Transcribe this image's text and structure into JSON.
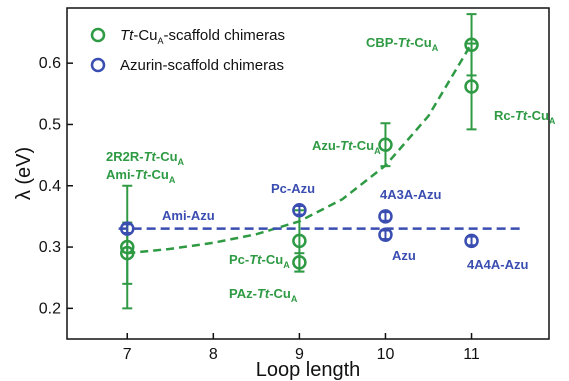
{
  "chart_data": {
    "type": "scatter",
    "xlabel": "Loop length",
    "ylabel": "λ (eV)",
    "xlim": [
      6.3,
      11.9
    ],
    "ylim": [
      0.15,
      0.69
    ],
    "xticks": [
      7,
      8,
      9,
      10,
      11
    ],
    "yticks": [
      0.2,
      0.3,
      0.4,
      0.5,
      0.6
    ],
    "ytick_labels": [
      "0.2",
      "0.3",
      "0.4",
      "0.5",
      "0.6"
    ],
    "legend_position": "top-left",
    "colors": {
      "green": "#2e9a43",
      "blue": "#3a4db0"
    },
    "series": [
      {
        "name": "Tt-CuA-scaffold chimeras",
        "legend_parts": [
          [
            "Tt",
            "italic"
          ],
          [
            "-Cu",
            "normal"
          ],
          [
            "A",
            "sub"
          ],
          [
            "-scaffold chimeras",
            "normal"
          ]
        ],
        "color": "#2e9a43",
        "points": [
          {
            "x": 7,
            "y": 0.3,
            "err": 0.1
          },
          {
            "x": 7,
            "y": 0.29,
            "err": 0.05
          },
          {
            "x": 9,
            "y": 0.31,
            "err": 0.05
          },
          {
            "x": 9,
            "y": 0.275,
            "err": 0.015
          },
          {
            "x": 10,
            "y": 0.467,
            "err": 0.035
          },
          {
            "x": 11,
            "y": 0.63,
            "err": 0.05
          },
          {
            "x": 11,
            "y": 0.562,
            "err": 0.07
          }
        ],
        "fit_curve": {
          "style": "dashed",
          "x": [
            7,
            7.5,
            8,
            8.5,
            9,
            9.5,
            10,
            10.5,
            11
          ],
          "y": [
            0.29,
            0.297,
            0.307,
            0.321,
            0.342,
            0.378,
            0.433,
            0.514,
            0.632
          ]
        }
      },
      {
        "name": "Azurin-scaffold chimeras",
        "legend_parts": [
          [
            "Azurin-scaffold chimeras",
            "normal"
          ]
        ],
        "color": "#3a4db0",
        "points": [
          {
            "x": 7,
            "y": 0.33,
            "err": 0.007
          },
          {
            "x": 9,
            "y": 0.36,
            "err": 0.007
          },
          {
            "x": 10,
            "y": 0.35,
            "err": 0.007
          },
          {
            "x": 10,
            "y": 0.32,
            "err": 0.007
          },
          {
            "x": 11,
            "y": 0.31,
            "err": 0.007
          }
        ],
        "fit_line": {
          "style": "dashed",
          "y": 0.33
        }
      }
    ],
    "annotations": [
      {
        "color": "green",
        "parts": [
          [
            "2R2R-",
            "normal"
          ],
          [
            "Tt",
            "italic"
          ],
          [
            "-Cu",
            "normal"
          ],
          [
            "A",
            "sub"
          ]
        ]
      },
      {
        "color": "green",
        "parts": [
          [
            "Ami-",
            "normal"
          ],
          [
            "Tt",
            "italic"
          ],
          [
            "-Cu",
            "normal"
          ],
          [
            "A",
            "sub"
          ]
        ]
      },
      {
        "color": "green",
        "parts": [
          [
            "Pc-",
            "normal"
          ],
          [
            "Tt",
            "italic"
          ],
          [
            "-Cu",
            "normal"
          ],
          [
            "A",
            "sub"
          ]
        ]
      },
      {
        "color": "green",
        "parts": [
          [
            "PAz-",
            "normal"
          ],
          [
            "Tt",
            "italic"
          ],
          [
            "-Cu",
            "normal"
          ],
          [
            "A",
            "sub"
          ]
        ]
      },
      {
        "color": "green",
        "parts": [
          [
            "Azu-",
            "normal"
          ],
          [
            "Tt",
            "italic"
          ],
          [
            "-Cu",
            "normal"
          ],
          [
            "A",
            "sub"
          ]
        ]
      },
      {
        "color": "green",
        "parts": [
          [
            "CBP-",
            "normal"
          ],
          [
            "Tt",
            "italic"
          ],
          [
            "-Cu",
            "normal"
          ],
          [
            "A",
            "sub"
          ]
        ]
      },
      {
        "color": "green",
        "parts": [
          [
            "Rc-",
            "normal"
          ],
          [
            "Tt",
            "italic"
          ],
          [
            "-Cu",
            "normal"
          ],
          [
            "A",
            "sub"
          ]
        ]
      },
      {
        "color": "blue",
        "parts": [
          [
            "Ami-Azu",
            "normal"
          ]
        ]
      },
      {
        "color": "blue",
        "parts": [
          [
            "Pc-Azu",
            "normal"
          ]
        ]
      },
      {
        "color": "blue",
        "parts": [
          [
            "4A3A-Azu",
            "normal"
          ]
        ]
      },
      {
        "color": "blue",
        "parts": [
          [
            "Azu",
            "normal"
          ]
        ]
      },
      {
        "color": "blue",
        "parts": [
          [
            "4A4A-Azu",
            "normal"
          ]
        ]
      }
    ]
  }
}
